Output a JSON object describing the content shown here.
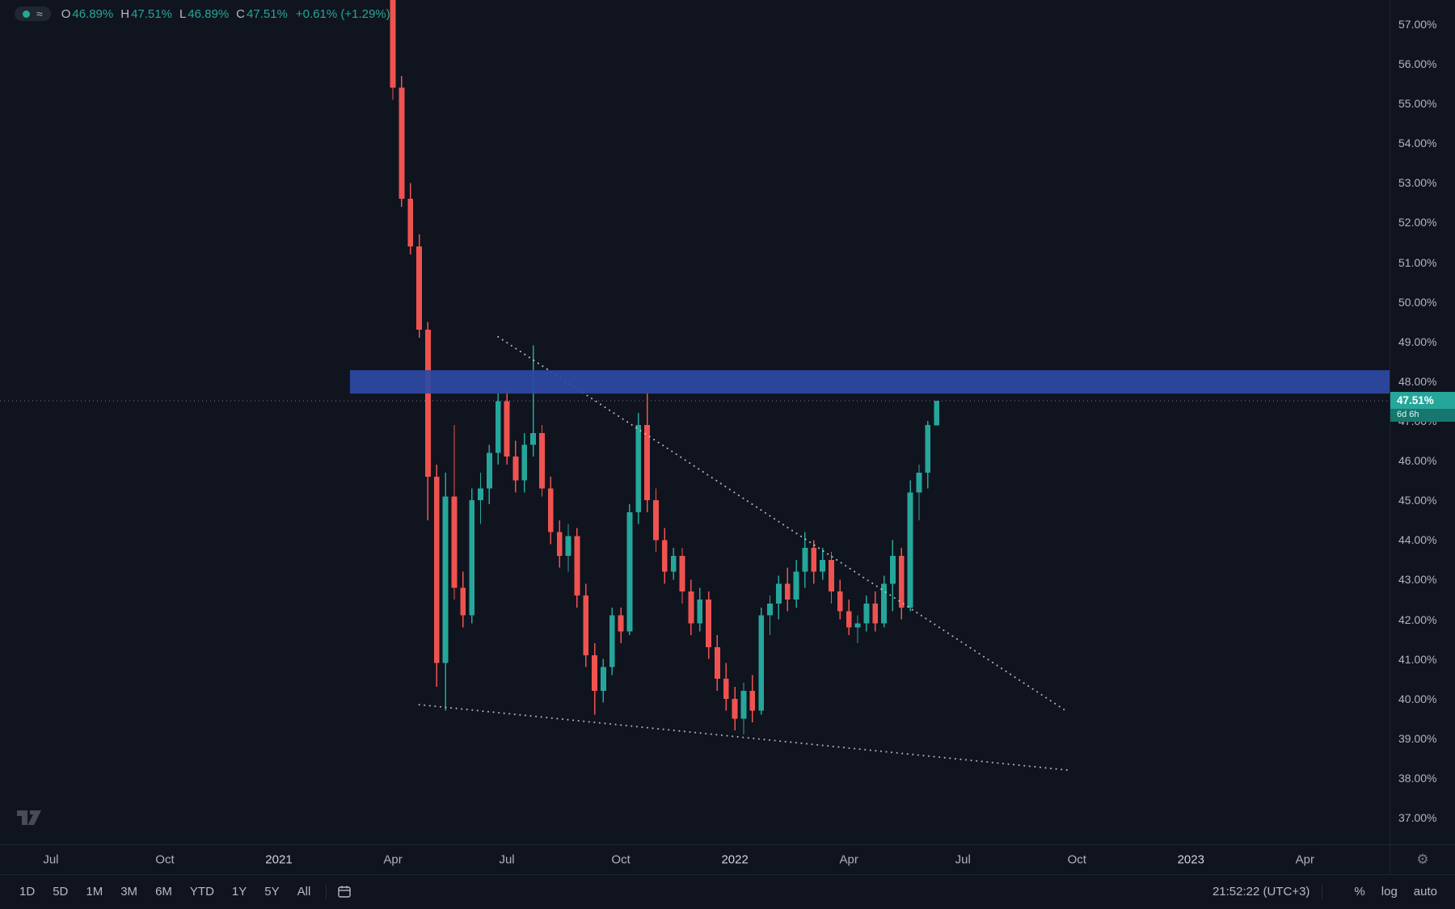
{
  "legend": {
    "ohlc": [
      {
        "label": "O",
        "value": "46.89%"
      },
      {
        "label": "H",
        "value": "47.51%"
      },
      {
        "label": "L",
        "value": "46.89%"
      },
      {
        "label": "C",
        "value": "47.51%"
      }
    ],
    "change": "+0.61% (+1.29%)"
  },
  "price_tag": {
    "value": "47.51%",
    "countdown": "6d 6h"
  },
  "toolbar": {
    "ranges": [
      "1D",
      "5D",
      "1M",
      "3M",
      "6M",
      "YTD",
      "1Y",
      "5Y",
      "All"
    ],
    "clock": "21:52:22 (UTC+3)",
    "scale_buttons": [
      {
        "label": "%",
        "name": "percent-scale-button"
      },
      {
        "label": "log",
        "name": "log-scale-button"
      },
      {
        "label": "auto",
        "name": "auto-scale-button"
      }
    ]
  },
  "chart_data": {
    "type": "candlestick",
    "y_tick_format": "percent",
    "y_ticks": [
      57,
      56,
      55,
      54,
      53,
      52,
      51,
      50,
      49,
      48,
      47,
      46,
      45,
      44,
      43,
      42,
      41,
      40,
      39,
      38,
      37
    ],
    "x_axis": {
      "labels": [
        {
          "text": "Jul",
          "week": -38,
          "major": false
        },
        {
          "text": "Oct",
          "week": -25,
          "major": false
        },
        {
          "text": "2021",
          "week": -12,
          "major": true
        },
        {
          "text": "Apr",
          "week": 1,
          "major": false
        },
        {
          "text": "Jul",
          "week": 14,
          "major": false
        },
        {
          "text": "Oct",
          "week": 27,
          "major": false
        },
        {
          "text": "2022",
          "week": 40,
          "major": true
        },
        {
          "text": "Apr",
          "week": 53,
          "major": false
        },
        {
          "text": "Jul",
          "week": 66,
          "major": false
        },
        {
          "text": "Oct",
          "week": 79,
          "major": false
        },
        {
          "text": "2023",
          "week": 92,
          "major": true
        },
        {
          "text": "Apr",
          "week": 105,
          "major": false
        }
      ]
    },
    "x_range": [
      -43.8,
      114.65
    ],
    "y_range": [
      36.33,
      57.61
    ],
    "candles": [
      [
        59.9,
        60.2,
        55.1,
        55.4
      ],
      [
        55.4,
        55.7,
        52.4,
        52.6
      ],
      [
        52.6,
        53.0,
        51.2,
        51.4
      ],
      [
        51.4,
        51.7,
        49.1,
        49.3
      ],
      [
        49.3,
        49.5,
        44.5,
        45.6
      ],
      [
        45.6,
        45.9,
        40.3,
        40.9
      ],
      [
        40.9,
        45.7,
        39.7,
        45.1
      ],
      [
        45.1,
        46.9,
        42.5,
        42.8
      ],
      [
        42.8,
        43.2,
        41.8,
        42.1
      ],
      [
        42.1,
        45.3,
        41.9,
        45.0
      ],
      [
        45.0,
        45.7,
        44.4,
        45.3
      ],
      [
        45.3,
        46.4,
        44.9,
        46.2
      ],
      [
        46.2,
        47.7,
        45.9,
        47.5
      ],
      [
        47.5,
        47.8,
        45.9,
        46.1
      ],
      [
        46.1,
        46.5,
        45.2,
        45.5
      ],
      [
        45.5,
        46.7,
        45.2,
        46.4
      ],
      [
        46.4,
        48.9,
        46.1,
        46.7
      ],
      [
        46.7,
        46.9,
        45.1,
        45.3
      ],
      [
        45.3,
        45.6,
        43.9,
        44.2
      ],
      [
        44.2,
        44.5,
        43.3,
        43.6
      ],
      [
        43.6,
        44.4,
        43.2,
        44.1
      ],
      [
        44.1,
        44.3,
        42.3,
        42.6
      ],
      [
        42.6,
        42.9,
        40.8,
        41.1
      ],
      [
        41.1,
        41.4,
        39.6,
        40.2
      ],
      [
        40.2,
        41.0,
        39.9,
        40.8
      ],
      [
        40.8,
        42.3,
        40.6,
        42.1
      ],
      [
        42.1,
        42.3,
        41.4,
        41.7
      ],
      [
        41.7,
        44.9,
        41.6,
        44.7
      ],
      [
        44.7,
        47.2,
        44.4,
        46.9
      ],
      [
        46.9,
        47.7,
        44.7,
        45.0
      ],
      [
        45.0,
        45.3,
        43.7,
        44.0
      ],
      [
        44.0,
        44.3,
        42.9,
        43.2
      ],
      [
        43.2,
        43.8,
        43.0,
        43.6
      ],
      [
        43.6,
        43.8,
        42.4,
        42.7
      ],
      [
        42.7,
        43.0,
        41.6,
        41.9
      ],
      [
        41.9,
        42.8,
        41.7,
        42.5
      ],
      [
        42.5,
        42.7,
        41.0,
        41.3
      ],
      [
        41.3,
        41.6,
        40.2,
        40.5
      ],
      [
        40.5,
        40.9,
        39.7,
        40.0
      ],
      [
        40.0,
        40.3,
        39.2,
        39.5
      ],
      [
        39.5,
        40.4,
        39.1,
        40.2
      ],
      [
        40.2,
        40.6,
        39.4,
        39.7
      ],
      [
        39.7,
        42.3,
        39.6,
        42.1
      ],
      [
        42.1,
        42.6,
        41.6,
        42.4
      ],
      [
        42.4,
        43.1,
        42.0,
        42.9
      ],
      [
        42.9,
        43.3,
        42.2,
        42.5
      ],
      [
        42.5,
        43.5,
        42.3,
        43.2
      ],
      [
        43.2,
        44.2,
        42.8,
        43.8
      ],
      [
        43.8,
        44.0,
        42.9,
        43.2
      ],
      [
        43.2,
        43.8,
        43.0,
        43.5
      ],
      [
        43.5,
        43.7,
        42.4,
        42.7
      ],
      [
        42.7,
        43.0,
        42.0,
        42.2
      ],
      [
        42.2,
        42.5,
        41.6,
        41.8
      ],
      [
        41.8,
        42.1,
        41.4,
        41.9
      ],
      [
        41.9,
        42.6,
        41.7,
        42.4
      ],
      [
        42.4,
        42.7,
        41.7,
        41.9
      ],
      [
        41.9,
        43.1,
        41.8,
        42.9
      ],
      [
        42.9,
        44.0,
        42.2,
        43.6
      ],
      [
        43.6,
        43.8,
        42.0,
        42.3
      ],
      [
        42.3,
        45.5,
        42.2,
        45.2
      ],
      [
        45.2,
        45.9,
        44.5,
        45.7
      ],
      [
        45.7,
        47.0,
        45.3,
        46.9
      ],
      [
        46.89,
        47.51,
        46.89,
        47.51
      ]
    ],
    "price_line": {
      "price": 47.51
    },
    "band": {
      "price_top": 48.28,
      "price_bottom": 47.69,
      "week_start": -3.9
    },
    "trendlines": [
      {
        "x1": 13,
        "y1": 49.12,
        "x2": 78,
        "y2": 39.66
      },
      {
        "x1": 4,
        "y1": 39.85,
        "x2": 78,
        "y2": 38.2
      }
    ],
    "colors": {
      "up": "#26a69a",
      "down": "#ef5350",
      "band": "rgba(44,74,164,0.92)",
      "trendline": "#ced3de",
      "price_line": "#9aa0ae",
      "tag_bg": "#26a69a",
      "countdown_bg": "#15776d",
      "status_dot": "#22ab94"
    }
  }
}
